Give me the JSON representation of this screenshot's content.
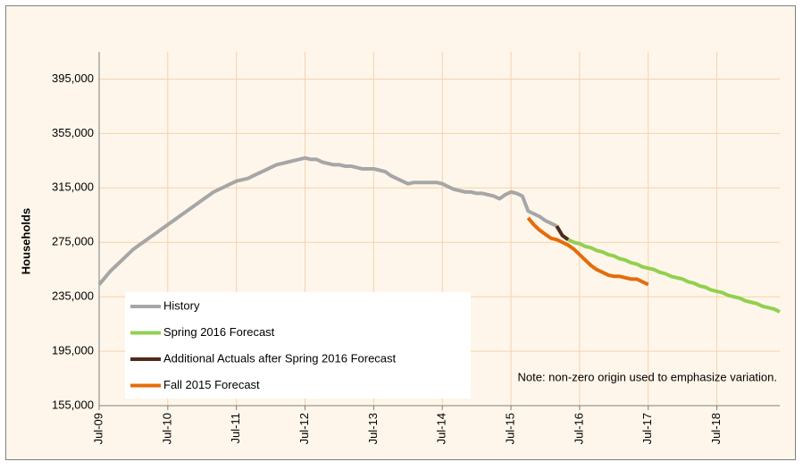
{
  "chart_data": {
    "type": "line",
    "ylabel": "Households",
    "note": "Note: non-zero origin used to emphasize variation.",
    "categories": [
      "Jul-09",
      null,
      null,
      null,
      null,
      null,
      null,
      null,
      null,
      null,
      null,
      null,
      "Jul-10",
      null,
      null,
      null,
      null,
      null,
      null,
      null,
      null,
      null,
      null,
      null,
      "Jul-11",
      null,
      null,
      null,
      null,
      null,
      null,
      null,
      null,
      null,
      null,
      null,
      "Jul-12",
      null,
      null,
      null,
      null,
      null,
      null,
      null,
      null,
      null,
      null,
      null,
      "Jul-13",
      null,
      null,
      null,
      null,
      null,
      null,
      null,
      null,
      null,
      null,
      null,
      "Jul-14",
      null,
      null,
      null,
      null,
      null,
      null,
      null,
      null,
      null,
      null,
      null,
      "Jul-15",
      null,
      null,
      null,
      null,
      null,
      null,
      null,
      null,
      null,
      null,
      null,
      "Jul-16",
      null,
      null,
      null,
      null,
      null,
      null,
      null,
      null,
      null,
      null,
      null,
      "Jul-17",
      null,
      null,
      null,
      null,
      null,
      null,
      null,
      null,
      null,
      null,
      null,
      "Jul-18",
      null,
      null,
      null,
      null,
      null,
      null,
      null,
      null,
      null,
      null,
      null
    ],
    "series": [
      {
        "name": "History",
        "color": "#a6a6a6",
        "values": [
          244000,
          249000,
          254000,
          258000,
          262000,
          266000,
          270000,
          273000,
          276000,
          279000,
          282000,
          285000,
          288000,
          291000,
          294000,
          297000,
          300000,
          303000,
          306000,
          309000,
          312000,
          314000,
          316000,
          318000,
          320000,
          321000,
          322000,
          324000,
          326000,
          328000,
          330000,
          332000,
          333000,
          334000,
          335000,
          336000,
          337000,
          336000,
          336000,
          334000,
          333000,
          332000,
          332000,
          331000,
          331000,
          330000,
          329000,
          329000,
          329000,
          328000,
          327000,
          324000,
          322000,
          320000,
          318000,
          319000,
          319000,
          319000,
          319000,
          319000,
          318000,
          316000,
          314000,
          313000,
          312000,
          312000,
          311000,
          311000,
          310000,
          309000,
          307000,
          310000,
          312000,
          311000,
          309000,
          298000,
          296000,
          294000,
          291000,
          289000,
          287000,
          null,
          null,
          null,
          null,
          null,
          null,
          null,
          null,
          null,
          null,
          null,
          null,
          null,
          null,
          null,
          null,
          null,
          null,
          null,
          null,
          null,
          null,
          null,
          null,
          null,
          null,
          null,
          null,
          null,
          null,
          null,
          null,
          null,
          null,
          null,
          null,
          null,
          null,
          null
        ]
      },
      {
        "name": "Spring 2016 Forecast",
        "color": "#92d050",
        "values": [
          null,
          null,
          null,
          null,
          null,
          null,
          null,
          null,
          null,
          null,
          null,
          null,
          null,
          null,
          null,
          null,
          null,
          null,
          null,
          null,
          null,
          null,
          null,
          null,
          null,
          null,
          null,
          null,
          null,
          null,
          null,
          null,
          null,
          null,
          null,
          null,
          null,
          null,
          null,
          null,
          null,
          null,
          null,
          null,
          null,
          null,
          null,
          null,
          null,
          null,
          null,
          null,
          null,
          null,
          null,
          null,
          null,
          null,
          null,
          null,
          null,
          null,
          null,
          null,
          null,
          null,
          null,
          null,
          null,
          null,
          null,
          null,
          null,
          null,
          null,
          null,
          null,
          null,
          null,
          null,
          null,
          null,
          277000,
          275000,
          274000,
          272000,
          271000,
          269000,
          268000,
          266000,
          265000,
          263000,
          262000,
          260000,
          259000,
          257000,
          256000,
          255000,
          253000,
          252000,
          250000,
          249000,
          248000,
          246000,
          245000,
          243000,
          242000,
          240000,
          239000,
          238000,
          236000,
          235000,
          234000,
          232000,
          231000,
          230000,
          228000,
          227000,
          226000,
          224000
        ]
      },
      {
        "name": "Additional Actuals after Spring 2016 Forecast",
        "color": "#4f2a1a",
        "values": [
          null,
          null,
          null,
          null,
          null,
          null,
          null,
          null,
          null,
          null,
          null,
          null,
          null,
          null,
          null,
          null,
          null,
          null,
          null,
          null,
          null,
          null,
          null,
          null,
          null,
          null,
          null,
          null,
          null,
          null,
          null,
          null,
          null,
          null,
          null,
          null,
          null,
          null,
          null,
          null,
          null,
          null,
          null,
          null,
          null,
          null,
          null,
          null,
          null,
          null,
          null,
          null,
          null,
          null,
          null,
          null,
          null,
          null,
          null,
          null,
          null,
          null,
          null,
          null,
          null,
          null,
          null,
          null,
          null,
          null,
          null,
          null,
          null,
          null,
          null,
          null,
          null,
          null,
          null,
          null,
          287000,
          280000,
          277000,
          null,
          null,
          null,
          null,
          null,
          null,
          null,
          null,
          null,
          null,
          null,
          null,
          null,
          null,
          null,
          null,
          null,
          null,
          null,
          null,
          null,
          null,
          null,
          null,
          null,
          null,
          null,
          null,
          null,
          null,
          null,
          null,
          null,
          null,
          null,
          null,
          null
        ]
      },
      {
        "name": "Fall 2015 Forecast",
        "color": "#e46c0a",
        "values": [
          null,
          null,
          null,
          null,
          null,
          null,
          null,
          null,
          null,
          null,
          null,
          null,
          null,
          null,
          null,
          null,
          null,
          null,
          null,
          null,
          null,
          null,
          null,
          null,
          null,
          null,
          null,
          null,
          null,
          null,
          null,
          null,
          null,
          null,
          null,
          null,
          null,
          null,
          null,
          null,
          null,
          null,
          null,
          null,
          null,
          null,
          null,
          null,
          null,
          null,
          null,
          null,
          null,
          null,
          null,
          null,
          null,
          null,
          null,
          null,
          null,
          null,
          null,
          null,
          null,
          null,
          null,
          null,
          null,
          null,
          null,
          null,
          null,
          null,
          null,
          293000,
          288000,
          284000,
          281000,
          278000,
          277000,
          275000,
          273000,
          270000,
          266000,
          262000,
          258000,
          255000,
          253000,
          251000,
          250000,
          250000,
          249000,
          248000,
          248000,
          246000,
          244000,
          null,
          null,
          null,
          null,
          null,
          null,
          null,
          null,
          null,
          null,
          null,
          null,
          null,
          null,
          null,
          null,
          null,
          null,
          null,
          null,
          null,
          null,
          null
        ]
      }
    ],
    "ylim": [
      155000,
      415000
    ],
    "yticks": [
      {
        "value": 155000,
        "label": "155,000"
      },
      {
        "value": 195000,
        "label": "195,000"
      },
      {
        "value": 235000,
        "label": "235,000"
      },
      {
        "value": 275000,
        "label": "275,000"
      },
      {
        "value": 315000,
        "label": "315,000"
      },
      {
        "value": 355000,
        "label": "355,000"
      },
      {
        "value": 395000,
        "label": "395,000"
      }
    ],
    "grid": true
  }
}
